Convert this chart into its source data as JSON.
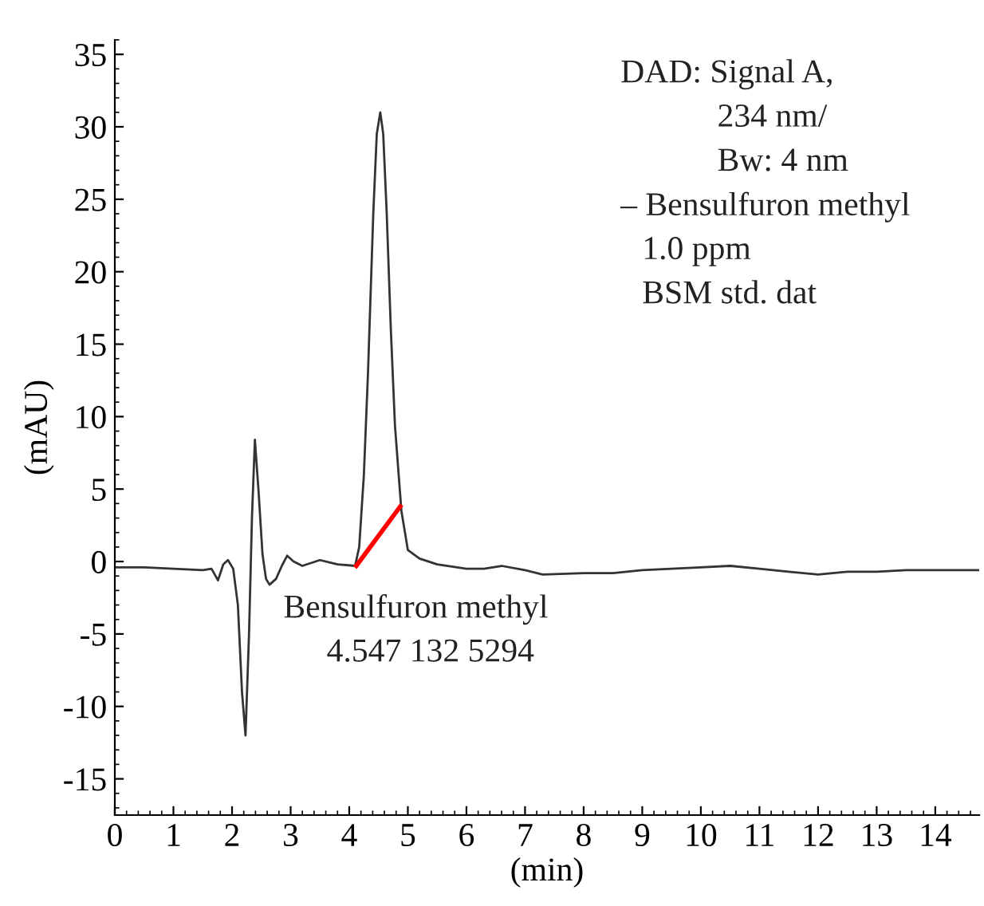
{
  "chart_data": {
    "type": "line",
    "xlabel": "(min)",
    "ylabel": "(mAU)",
    "xlim": [
      0,
      14.75
    ],
    "ylim": [
      -17.5,
      36
    ],
    "xticks": [
      0,
      1,
      2,
      3,
      4,
      5,
      6,
      7,
      8,
      9,
      10,
      11,
      12,
      13,
      14
    ],
    "yticks": [
      -15,
      -10,
      -5,
      0,
      5,
      10,
      15,
      20,
      25,
      30,
      35
    ],
    "grid": false,
    "legend": false,
    "marker": "none",
    "line_style": "solid",
    "series": [
      {
        "color": "#333333",
        "x": [
          0,
          0.5,
          1.0,
          1.5,
          1.65,
          1.76,
          1.85,
          1.93,
          2.02,
          2.1,
          2.17,
          2.23,
          2.29,
          2.34,
          2.39,
          2.45,
          2.52,
          2.58,
          2.64,
          2.75,
          2.85,
          2.94,
          3.05,
          3.2,
          3.5,
          3.8,
          4.1,
          4.17,
          4.25,
          4.32,
          4.41,
          4.47,
          4.53,
          4.58,
          4.64,
          4.71,
          4.78,
          4.89,
          5.0,
          5.2,
          5.5,
          6.0,
          6.3,
          6.6,
          7.0,
          7.3,
          8.0,
          8.5,
          9.0,
          9.5,
          10.0,
          10.5,
          11.0,
          11.5,
          12.0,
          12.5,
          13.0,
          13.5,
          14.0,
          14.75
        ],
        "values": [
          -0.4,
          -0.4,
          -0.5,
          -0.6,
          -0.5,
          -1.3,
          -0.2,
          0.1,
          -0.5,
          -3.0,
          -9.0,
          -12.0,
          -5.0,
          3.0,
          8.4,
          5.0,
          0.5,
          -1.2,
          -1.6,
          -1.2,
          -0.3,
          0.4,
          0.0,
          -0.3,
          0.1,
          -0.2,
          -0.3,
          1.0,
          6.0,
          13.0,
          24.0,
          29.5,
          31.0,
          29.5,
          24.0,
          16.0,
          9.4,
          3.5,
          0.8,
          0.2,
          -0.2,
          -0.5,
          -0.5,
          -0.3,
          -0.6,
          -0.9,
          -0.8,
          -0.8,
          -0.6,
          -0.5,
          -0.4,
          -0.3,
          -0.5,
          -0.7,
          -0.9,
          -0.7,
          -0.7,
          -0.6,
          -0.6,
          -0.6
        ]
      },
      {
        "color": "#ff0000",
        "x": [
          4.12,
          4.87
        ],
        "values": [
          -0.3,
          3.8
        ]
      }
    ],
    "annotations": [
      "DAD: Signal A,",
      "234 nm/",
      "Bw: 4 nm",
      "– Bensulfuron methyl",
      "1.0 ppm",
      "BSM std. dat",
      "Bensulfuron methyl",
      "4.547 132 5294"
    ]
  }
}
